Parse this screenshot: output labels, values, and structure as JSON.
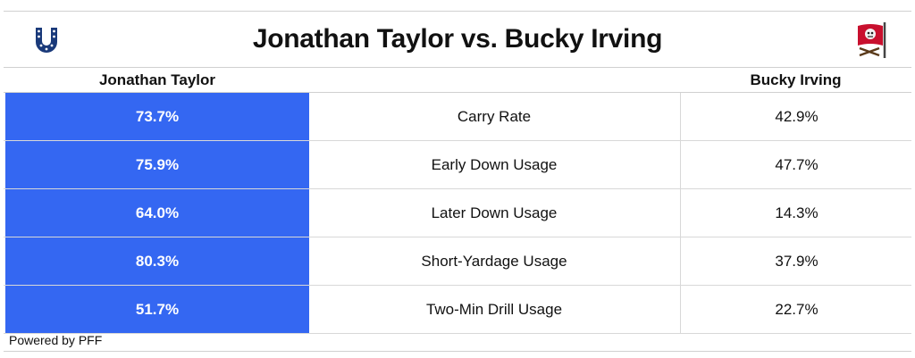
{
  "title": "Jonathan Taylor vs. Bucky Irving",
  "left_player": "Jonathan Taylor",
  "right_player": "Bucky Irving",
  "left_logo": "horseshoe-icon",
  "right_logo": "buccaneers-flag-icon",
  "accent_color": "#3467f2",
  "rows": [
    {
      "left": "73.7%",
      "metric": "Carry Rate",
      "right": "42.9%"
    },
    {
      "left": "75.9%",
      "metric": "Early Down Usage",
      "right": "47.7%"
    },
    {
      "left": "64.0%",
      "metric": "Later Down Usage",
      "right": "14.3%"
    },
    {
      "left": "80.3%",
      "metric": "Short-Yardage Usage",
      "right": "37.9%"
    },
    {
      "left": "51.7%",
      "metric": "Two-Min Drill Usage",
      "right": "22.7%"
    }
  ],
  "footer": "Powered by PFF"
}
